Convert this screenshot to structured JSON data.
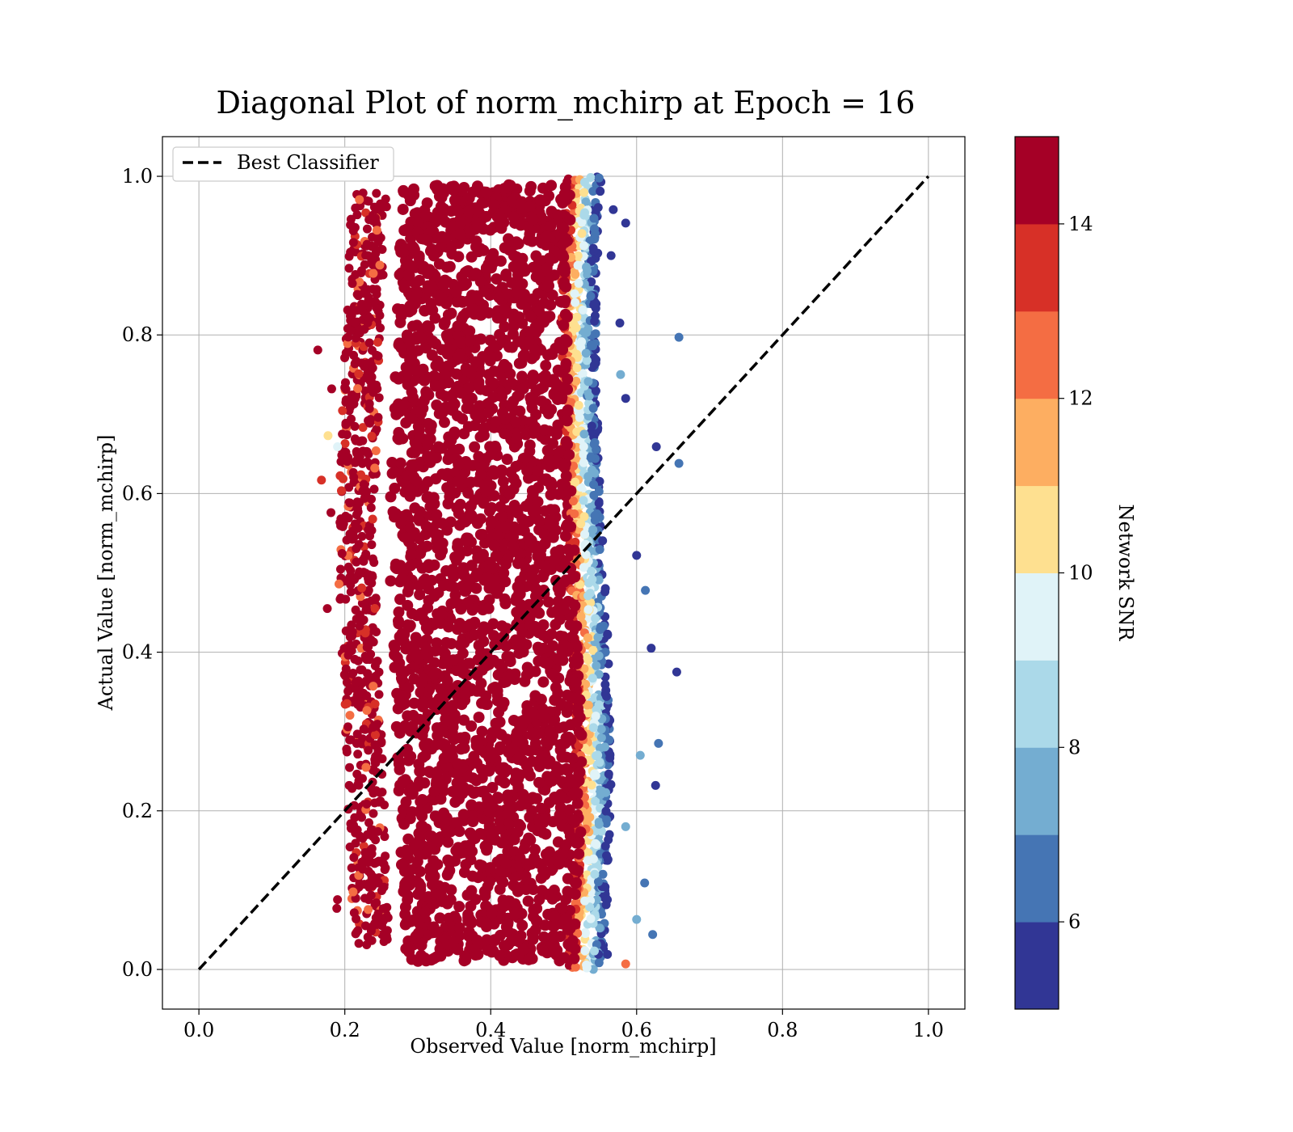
{
  "chart_data": {
    "type": "scatter",
    "title": "Diagonal Plot of norm_mchirp at Epoch = 16",
    "xlabel": "Observed Value [norm_mchirp]",
    "ylabel": "Actual Value [norm_mchirp]",
    "xlim": [
      -0.05,
      1.05
    ],
    "ylim": [
      -0.05,
      1.05
    ],
    "xticks": [
      "0.0",
      "0.2",
      "0.4",
      "0.6",
      "0.8",
      "1.0"
    ],
    "yticks": [
      "0.0",
      "0.2",
      "0.4",
      "0.6",
      "0.8",
      "1.0"
    ],
    "grid": true,
    "legend": {
      "position": "top-left",
      "entries": [
        "Best Classifier"
      ]
    },
    "reference_line": {
      "name": "Best Classifier",
      "style": "dashed",
      "color": "#000000",
      "x": [
        0.0,
        1.0
      ],
      "y": [
        0.0,
        1.0
      ]
    },
    "colorbar": {
      "label": "Network SNR",
      "range": [
        5,
        15
      ],
      "ticks": [
        "6",
        "8",
        "10",
        "12",
        "14"
      ],
      "tick_values": [
        6,
        8,
        10,
        12,
        14
      ],
      "colors": [
        "#313695",
        "#4575b4",
        "#74add1",
        "#abd9e9",
        "#e0f3f8",
        "#fee090",
        "#fdae61",
        "#f46d43",
        "#d73027",
        "#a50026"
      ]
    },
    "series": [
      {
        "color_by": "Network SNR",
        "points": [
          {
            "x": 0.163,
            "y": 0.781,
            "snr": 15
          },
          {
            "x": 0.182,
            "y": 0.732,
            "snr": 15
          },
          {
            "x": 0.176,
            "y": 0.455,
            "snr": 15
          },
          {
            "x": 0.168,
            "y": 0.617,
            "snr": 13
          },
          {
            "x": 0.177,
            "y": 0.673,
            "snr": 10
          },
          {
            "x": 0.19,
            "y": 0.659,
            "snr": 9
          },
          {
            "x": 0.21,
            "y": 0.828,
            "snr": 15
          },
          {
            "x": 0.215,
            "y": 0.796,
            "snr": 15
          },
          {
            "x": 0.19,
            "y": 0.088,
            "snr": 15
          },
          {
            "x": 0.189,
            "y": 0.077,
            "snr": 15
          },
          {
            "x": 0.218,
            "y": 0.049,
            "snr": 15
          },
          {
            "x": 0.206,
            "y": 0.232,
            "snr": 15
          },
          {
            "x": 0.223,
            "y": 0.881,
            "snr": 14
          },
          {
            "x": 0.244,
            "y": 0.932,
            "snr": 12
          },
          {
            "x": 0.253,
            "y": 0.962,
            "snr": 15
          },
          {
            "x": 0.248,
            "y": 0.888,
            "snr": 12
          },
          {
            "x": 0.203,
            "y": 0.362,
            "snr": 15
          },
          {
            "x": 0.192,
            "y": 0.486,
            "snr": 12
          },
          {
            "x": 0.207,
            "y": 0.549,
            "snr": 15
          },
          {
            "x": 0.181,
            "y": 0.576,
            "snr": 14
          },
          {
            "x": 0.226,
            "y": 0.303,
            "snr": 15
          },
          {
            "x": 0.241,
            "y": 0.21,
            "snr": 14
          },
          {
            "x": 0.231,
            "y": 0.17,
            "snr": 15
          },
          {
            "x": 0.585,
            "y": 0.941,
            "snr": 5
          },
          {
            "x": 0.568,
            "y": 0.958,
            "snr": 5
          },
          {
            "x": 0.565,
            "y": 0.9,
            "snr": 5
          },
          {
            "x": 0.577,
            "y": 0.815,
            "snr": 5
          },
          {
            "x": 0.658,
            "y": 0.797,
            "snr": 6
          },
          {
            "x": 0.627,
            "y": 0.659,
            "snr": 5
          },
          {
            "x": 0.658,
            "y": 0.638,
            "snr": 6
          },
          {
            "x": 0.655,
            "y": 0.375,
            "snr": 5
          },
          {
            "x": 0.63,
            "y": 0.285,
            "snr": 6
          },
          {
            "x": 0.626,
            "y": 0.232,
            "snr": 5
          },
          {
            "x": 0.622,
            "y": 0.044,
            "snr": 6
          },
          {
            "x": 0.6,
            "y": 0.063,
            "snr": 7
          },
          {
            "x": 0.611,
            "y": 0.109,
            "snr": 6
          },
          {
            "x": 0.578,
            "y": 0.75,
            "snr": 7
          },
          {
            "x": 0.585,
            "y": 0.72,
            "snr": 5
          },
          {
            "x": 0.6,
            "y": 0.522,
            "snr": 5
          },
          {
            "x": 0.612,
            "y": 0.478,
            "snr": 6
          },
          {
            "x": 0.62,
            "y": 0.405,
            "snr": 5
          },
          {
            "x": 0.585,
            "y": 0.007,
            "snr": 12
          },
          {
            "x": 0.56,
            "y": 0.019,
            "snr": 5
          },
          {
            "x": 0.585,
            "y": 0.18,
            "snr": 7
          },
          {
            "x": 0.605,
            "y": 0.27,
            "snr": 7
          }
        ]
      }
    ]
  }
}
